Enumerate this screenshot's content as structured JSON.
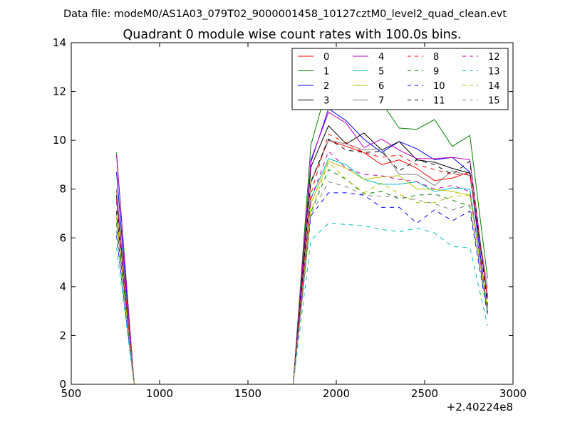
{
  "chart_data": {
    "type": "line",
    "suptitle": "Data file: modeM0/AS1A03_079T02_9000001458_10127cztM0_level2_quad_clean.evt",
    "title": "Quadrant 0 module wise count rates with 100.0s bins.",
    "xlabel": "",
    "ylabel": "",
    "x_offset_label": "+2.40224e8",
    "xlim": [
      500,
      3000
    ],
    "ylim": [
      0,
      14
    ],
    "xticks": [
      500,
      1000,
      1500,
      2000,
      2500,
      3000
    ],
    "yticks": [
      0,
      2,
      4,
      6,
      8,
      10,
      12,
      14
    ],
    "legend_position": "upper-right",
    "legend_columns": 4,
    "x": [
      756,
      856,
      956,
      1056,
      1156,
      1256,
      1356,
      1456,
      1556,
      1656,
      1756,
      1856,
      1956,
      2056,
      2156,
      2256,
      2356,
      2456,
      2556,
      2656,
      2756,
      2856
    ],
    "series": [
      {
        "name": "0",
        "color": "#ff0000",
        "dash": "solid",
        "values": [
          7.95,
          0,
          0,
          0,
          0,
          0,
          0,
          0,
          0,
          0,
          0,
          8.3,
          10.0,
          9.75,
          9.5,
          9.0,
          9.2,
          8.85,
          8.35,
          8.45,
          8.7,
          3.6
        ]
      },
      {
        "name": "1",
        "color": "#008000",
        "dash": "solid",
        "values": [
          9.5,
          0,
          0,
          0,
          0,
          0,
          0,
          0,
          0,
          0,
          0,
          9.8,
          12.4,
          12.25,
          11.6,
          11.55,
          10.5,
          10.45,
          10.85,
          9.75,
          10.2,
          4.35
        ]
      },
      {
        "name": "2",
        "color": "#0000ff",
        "dash": "solid",
        "values": [
          8.7,
          0,
          0,
          0,
          0,
          0,
          0,
          0,
          0,
          0,
          0,
          9.1,
          11.3,
          10.8,
          10.05,
          9.5,
          9.95,
          9.65,
          9.2,
          9.3,
          8.7,
          2.95
        ]
      },
      {
        "name": "3",
        "color": "#000000",
        "dash": "solid",
        "values": [
          7.75,
          0,
          0,
          0,
          0,
          0,
          0,
          0,
          0,
          0,
          0,
          8.9,
          10.6,
          9.85,
          10.3,
          9.6,
          9.95,
          9.2,
          9.1,
          8.85,
          8.65,
          3.6
        ]
      },
      {
        "name": "4",
        "color": "#bf00bf",
        "dash": "solid",
        "values": [
          9.4,
          0,
          0,
          0,
          0,
          0,
          0,
          0,
          0,
          0,
          0,
          9.2,
          11.15,
          10.7,
          9.7,
          10.05,
          9.6,
          9.25,
          9.25,
          9.3,
          9.2,
          3.5
        ]
      },
      {
        "name": "5",
        "color": "#00bfbf",
        "dash": "solid",
        "values": [
          6.85,
          0,
          0,
          0,
          0,
          0,
          0,
          0,
          0,
          0,
          0,
          7.6,
          9.25,
          9.0,
          8.4,
          8.2,
          8.2,
          8.3,
          7.9,
          8.05,
          8.0,
          3.05
        ]
      },
      {
        "name": "6",
        "color": "#bfbf00",
        "dash": "solid",
        "values": [
          7.0,
          0,
          0,
          0,
          0,
          0,
          0,
          0,
          0,
          0,
          0,
          7.4,
          9.15,
          8.85,
          8.4,
          8.5,
          8.55,
          8.0,
          8.0,
          7.9,
          7.75,
          3.2
        ]
      },
      {
        "name": "7",
        "color": "#808080",
        "dash": "solid",
        "values": [
          8.0,
          0,
          0,
          0,
          0,
          0,
          0,
          0,
          0,
          0,
          0,
          8.25,
          10.0,
          9.85,
          9.6,
          9.65,
          8.6,
          8.6,
          8.15,
          8.75,
          8.55,
          3.95
        ]
      },
      {
        "name": "8",
        "color": "#ff0000",
        "dash": "dashed",
        "values": [
          7.6,
          0,
          0,
          0,
          0,
          0,
          0,
          0,
          0,
          0,
          0,
          7.8,
          10.25,
          9.9,
          9.5,
          9.3,
          9.4,
          9.0,
          8.8,
          8.6,
          8.6,
          3.6
        ]
      },
      {
        "name": "9",
        "color": "#008000",
        "dash": "dashed",
        "values": [
          6.6,
          0,
          0,
          0,
          0,
          0,
          0,
          0,
          0,
          0,
          0,
          7.05,
          8.8,
          8.4,
          7.8,
          7.9,
          7.6,
          7.75,
          7.8,
          7.55,
          7.3,
          2.95
        ]
      },
      {
        "name": "10",
        "color": "#0000ff",
        "dash": "dashed",
        "values": [
          6.1,
          0,
          0,
          0,
          0,
          0,
          0,
          0,
          0,
          0,
          0,
          6.9,
          7.85,
          7.85,
          7.75,
          7.25,
          7.25,
          6.6,
          7.15,
          6.7,
          7.1,
          2.85
        ]
      },
      {
        "name": "11",
        "color": "#000000",
        "dash": "dashed",
        "values": [
          7.1,
          0,
          0,
          0,
          0,
          0,
          0,
          0,
          0,
          0,
          0,
          8.3,
          10.05,
          9.6,
          9.5,
          9.55,
          8.75,
          9.2,
          9.0,
          8.6,
          9.15,
          3.25
        ]
      },
      {
        "name": "12",
        "color": "#bf00bf",
        "dash": "dashed",
        "values": [
          7.5,
          0,
          0,
          0,
          0,
          0,
          0,
          0,
          0,
          0,
          0,
          7.6,
          9.55,
          8.85,
          8.6,
          8.55,
          8.4,
          8.3,
          8.0,
          8.15,
          7.9,
          3.1
        ]
      },
      {
        "name": "13",
        "color": "#00bfbf",
        "dash": "dashed",
        "values": [
          5.6,
          0,
          0,
          0,
          0,
          0,
          0,
          0,
          0,
          0,
          0,
          5.9,
          6.6,
          6.55,
          6.5,
          6.35,
          6.25,
          6.4,
          6.2,
          5.65,
          5.6,
          2.4
        ]
      },
      {
        "name": "14",
        "color": "#bfbf00",
        "dash": "dashed",
        "values": [
          6.8,
          0,
          0,
          0,
          0,
          0,
          0,
          0,
          0,
          0,
          0,
          7.1,
          9.1,
          8.4,
          7.85,
          8.25,
          7.8,
          7.45,
          7.45,
          7.7,
          7.75,
          3.0
        ]
      },
      {
        "name": "15",
        "color": "#808080",
        "dash": "dashed",
        "values": [
          6.3,
          0,
          0,
          0,
          0,
          0,
          0,
          0,
          0,
          0,
          0,
          6.95,
          8.3,
          8.1,
          7.75,
          7.7,
          7.7,
          7.55,
          7.4,
          7.15,
          7.35,
          3.05
        ]
      }
    ]
  }
}
